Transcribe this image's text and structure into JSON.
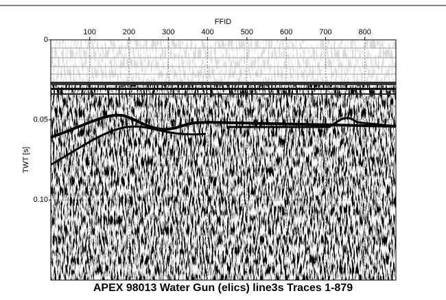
{
  "chart_data": {
    "type": "seismic",
    "title": "APEX 98013 Water Gun (elics) line3s Traces 1-879",
    "xlabel": "FFID",
    "ylabel": "TWT [s]",
    "xlim": [
      1,
      879
    ],
    "xticks": [
      100,
      200,
      300,
      400,
      500,
      600,
      700,
      800
    ],
    "ylim": [
      0,
      0.15
    ],
    "yticks": [
      0,
      0.05,
      {
        "value": 0.1,
        "label": "0.10"
      }
    ],
    "grid": true
  }
}
